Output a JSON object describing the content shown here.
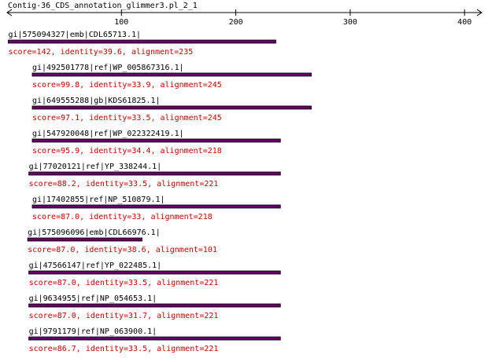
{
  "title": "Contig-36_CDS_annotation_glimmer3.pl_2_1",
  "axis": {
    "ticks": [
      100,
      200,
      300,
      400
    ],
    "min": 0,
    "max": 415
  },
  "colors": {
    "axis": "#000000",
    "bar_fill": "#660066",
    "bar_stroke": "#000000",
    "name_text": "#000000",
    "score_text": "#cc0000"
  },
  "hits": [
    {
      "name": "gi|575094327|emb|CDL65713.1|",
      "score": "score=142, identity=39.6, alignment=235",
      "start": 1,
      "end": 235
    },
    {
      "name": "gi|492501778|ref|WP_005867316.1|",
      "score": "score=99.8, identity=33.9, alignment=245",
      "start": 22,
      "end": 266
    },
    {
      "name": "gi|649555288|gb|KDS61825.1|",
      "score": "score=97.1, identity=33.5, alignment=245",
      "start": 22,
      "end": 266
    },
    {
      "name": "gi|547920048|ref|WP_022322419.1|",
      "score": "score=95.9, identity=34.4, alignment=218",
      "start": 22,
      "end": 239
    },
    {
      "name": "gi|77020121|ref|YP_338244.1|",
      "score": "score=88.2, identity=33.5, alignment=221",
      "start": 19,
      "end": 239
    },
    {
      "name": "gi|17402855|ref|NP_510879.1|",
      "score": "score=87.0, identity=33, alignment=218",
      "start": 22,
      "end": 239
    },
    {
      "name": "gi|575096096|emb|CDL66976.1|",
      "score": "score=87.0, identity=38.6, alignment=101",
      "start": 18,
      "end": 118
    },
    {
      "name": "gi|47566147|ref|YP_022485.1|",
      "score": "score=87.0, identity=33.5, alignment=221",
      "start": 19,
      "end": 239
    },
    {
      "name": "gi|9634955|ref|NP_054653.1|",
      "score": "score=87.0, identity=31.7, alignment=221",
      "start": 19,
      "end": 239
    },
    {
      "name": "gi|9791179|ref|NP_063900.1|",
      "score": "score=86.7, identity=33.5, alignment=221",
      "start": 19,
      "end": 239
    }
  ]
}
